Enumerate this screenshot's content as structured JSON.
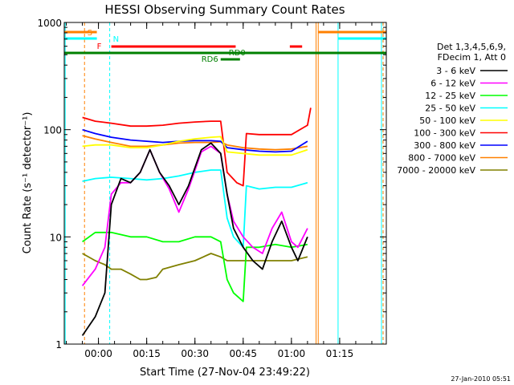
{
  "chart_data": {
    "type": "line",
    "title": "HESSI Observing Summary Count Rates",
    "xlabel": "Start Time (27-Nov-04 23:49:22)",
    "ylabel": "Count Rate (s⁻¹ detector⁻¹)",
    "y_scale": "log",
    "ylim": [
      1,
      1000
    ],
    "xlim": [
      "23:49:22",
      "01:29:30"
    ],
    "x_ticks": [
      "00:00",
      "00:15",
      "00:30",
      "00:45",
      "01:00",
      "01:15"
    ],
    "y_ticks": [
      "1",
      "10",
      "100",
      "1000"
    ],
    "legend_title": [
      "Det 1,3,4,5,6,9,",
      "FDecim 1, Att 0"
    ],
    "legend_position": "right",
    "footer_date": "27-Jan-2010 05:51",
    "series": [
      {
        "name": "3 - 6 keV",
        "color": "#000000",
        "points": [
          [
            "23:55",
            1.2
          ],
          [
            "23:59",
            1.8
          ],
          [
            "00:02",
            3
          ],
          [
            "00:04",
            20
          ],
          [
            "00:07",
            35
          ],
          [
            "00:10",
            32
          ],
          [
            "00:13",
            40
          ],
          [
            "00:16",
            65
          ],
          [
            "00:19",
            40
          ],
          [
            "00:22",
            30
          ],
          [
            "00:25",
            20
          ],
          [
            "00:28",
            30
          ],
          [
            "00:32",
            65
          ],
          [
            "00:35",
            75
          ],
          [
            "00:38",
            60
          ],
          [
            "00:40",
            25
          ],
          [
            "00:42",
            12
          ],
          [
            "00:45",
            8
          ],
          [
            "00:48",
            6
          ],
          [
            "00:51",
            5
          ],
          [
            "00:54",
            9
          ],
          [
            "00:57",
            14
          ],
          [
            "01:00",
            8
          ],
          [
            "01:02",
            6
          ],
          [
            "01:05",
            10
          ]
        ]
      },
      {
        "name": "6 - 12 keV",
        "color": "#ff00ff",
        "points": [
          [
            "23:55",
            3.5
          ],
          [
            "23:59",
            5
          ],
          [
            "00:02",
            8
          ],
          [
            "00:04",
            25
          ],
          [
            "00:07",
            32
          ],
          [
            "00:10",
            32
          ],
          [
            "00:13",
            40
          ],
          [
            "00:16",
            65
          ],
          [
            "00:19",
            40
          ],
          [
            "00:22",
            28
          ],
          [
            "00:25",
            17
          ],
          [
            "00:28",
            28
          ],
          [
            "00:32",
            62
          ],
          [
            "00:35",
            70
          ],
          [
            "00:38",
            60
          ],
          [
            "00:40",
            25
          ],
          [
            "00:42",
            14
          ],
          [
            "00:45",
            10
          ],
          [
            "00:48",
            8
          ],
          [
            "00:51",
            7
          ],
          [
            "00:54",
            12
          ],
          [
            "00:57",
            17
          ],
          [
            "01:00",
            9
          ],
          [
            "01:02",
            8
          ],
          [
            "01:05",
            12
          ]
        ]
      },
      {
        "name": "12 - 25 keV",
        "color": "#00ff00",
        "points": [
          [
            "23:55",
            9
          ],
          [
            "23:59",
            11
          ],
          [
            "00:04",
            11
          ],
          [
            "00:10",
            10
          ],
          [
            "00:15",
            10
          ],
          [
            "00:20",
            9
          ],
          [
            "00:25",
            9
          ],
          [
            "00:30",
            10
          ],
          [
            "00:35",
            10
          ],
          [
            "00:38",
            9
          ],
          [
            "00:40",
            4
          ],
          [
            "00:42",
            3
          ],
          [
            "00:45",
            2.5
          ],
          [
            "00:46",
            8
          ],
          [
            "00:50",
            8
          ],
          [
            "00:55",
            8.5
          ],
          [
            "01:00",
            8
          ],
          [
            "01:05",
            8.5
          ]
        ]
      },
      {
        "name": "25 - 50 keV",
        "color": "#00ffff",
        "points": [
          [
            "23:55",
            33
          ],
          [
            "23:59",
            35
          ],
          [
            "00:04",
            36
          ],
          [
            "00:10",
            35
          ],
          [
            "00:15",
            34
          ],
          [
            "00:20",
            35
          ],
          [
            "00:25",
            37
          ],
          [
            "00:30",
            40
          ],
          [
            "00:35",
            42
          ],
          [
            "00:38",
            42
          ],
          [
            "00:40",
            15
          ],
          [
            "00:42",
            10
          ],
          [
            "00:45",
            8
          ],
          [
            "00:46",
            30
          ],
          [
            "00:50",
            28
          ],
          [
            "00:55",
            29
          ],
          [
            "01:00",
            29
          ],
          [
            "01:05",
            32
          ]
        ]
      },
      {
        "name": "50 - 100 keV",
        "color": "#ffff00",
        "points": [
          [
            "23:55",
            70
          ],
          [
            "23:59",
            72
          ],
          [
            "00:04",
            72
          ],
          [
            "00:10",
            68
          ],
          [
            "00:15",
            68
          ],
          [
            "00:20",
            72
          ],
          [
            "00:25",
            78
          ],
          [
            "00:30",
            82
          ],
          [
            "00:35",
            85
          ],
          [
            "00:38",
            86
          ],
          [
            "00:40",
            62
          ],
          [
            "00:45",
            60
          ],
          [
            "00:50",
            58
          ],
          [
            "00:55",
            58
          ],
          [
            "01:00",
            58
          ],
          [
            "01:05",
            65
          ]
        ]
      },
      {
        "name": "100 - 300 keV",
        "color": "#ff0000",
        "points": [
          [
            "23:55",
            130
          ],
          [
            "23:59",
            120
          ],
          [
            "00:04",
            115
          ],
          [
            "00:10",
            108
          ],
          [
            "00:15",
            108
          ],
          [
            "00:20",
            110
          ],
          [
            "00:25",
            115
          ],
          [
            "00:30",
            118
          ],
          [
            "00:35",
            120
          ],
          [
            "00:38",
            120
          ],
          [
            "00:40",
            40
          ],
          [
            "00:43",
            32
          ],
          [
            "00:45",
            30
          ],
          [
            "00:46",
            92
          ],
          [
            "00:50",
            90
          ],
          [
            "00:55",
            90
          ],
          [
            "01:00",
            90
          ],
          [
            "01:05",
            110
          ],
          [
            "01:06",
            160
          ]
        ]
      },
      {
        "name": "300 - 800 keV",
        "color": "#0000ff",
        "points": [
          [
            "23:55",
            100
          ],
          [
            "23:59",
            92
          ],
          [
            "00:04",
            85
          ],
          [
            "00:10",
            80
          ],
          [
            "00:15",
            78
          ],
          [
            "00:20",
            76
          ],
          [
            "00:25",
            78
          ],
          [
            "00:30",
            79
          ],
          [
            "00:35",
            79
          ],
          [
            "00:38",
            78
          ],
          [
            "00:40",
            68
          ],
          [
            "00:45",
            65
          ],
          [
            "00:50",
            63
          ],
          [
            "00:55",
            62
          ],
          [
            "01:00",
            63
          ],
          [
            "01:05",
            78
          ]
        ]
      },
      {
        "name": "800 - 7000 keV",
        "color": "#ff8000",
        "points": [
          [
            "23:55",
            88
          ],
          [
            "23:59",
            82
          ],
          [
            "00:04",
            76
          ],
          [
            "00:10",
            70
          ],
          [
            "00:15",
            70
          ],
          [
            "00:20",
            72
          ],
          [
            "00:25",
            75
          ],
          [
            "00:30",
            76
          ],
          [
            "00:35",
            76
          ],
          [
            "00:38",
            77
          ],
          [
            "00:40",
            72
          ],
          [
            "00:45",
            68
          ],
          [
            "00:50",
            66
          ],
          [
            "00:55",
            65
          ],
          [
            "01:00",
            66
          ],
          [
            "01:05",
            70
          ]
        ]
      },
      {
        "name": "7000 - 20000 keV",
        "color": "#808000",
        "points": [
          [
            "23:55",
            7
          ],
          [
            "23:59",
            6
          ],
          [
            "00:02",
            5.5
          ],
          [
            "00:04",
            5
          ],
          [
            "00:07",
            5
          ],
          [
            "00:10",
            4.5
          ],
          [
            "00:13",
            4
          ],
          [
            "00:15",
            4
          ],
          [
            "00:18",
            4.2
          ],
          [
            "00:20",
            5
          ],
          [
            "00:25",
            5.5
          ],
          [
            "00:30",
            6
          ],
          [
            "00:35",
            7
          ],
          [
            "00:38",
            6.5
          ],
          [
            "00:40",
            6
          ],
          [
            "00:45",
            6
          ],
          [
            "00:50",
            6
          ],
          [
            "00:55",
            6
          ],
          [
            "01:00",
            6
          ],
          [
            "01:05",
            6.5
          ]
        ]
      }
    ],
    "flags": [
      {
        "label": "S",
        "color": "#ff8000"
      },
      {
        "label": "N",
        "color": "#00ffff"
      },
      {
        "label": "F",
        "color": "#ff0000"
      },
      {
        "label": "RD0",
        "color": "#008000"
      },
      {
        "label": "RD6",
        "color": "#008000"
      }
    ]
  }
}
